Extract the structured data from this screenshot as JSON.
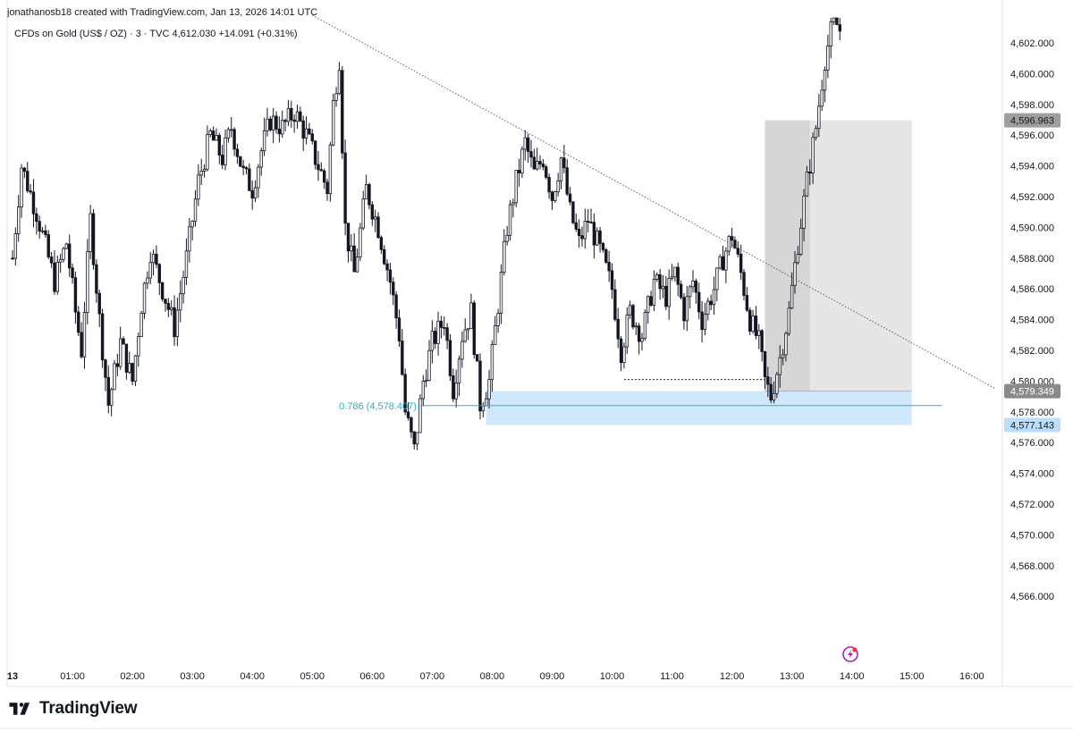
{
  "header": {
    "credit": "jonathanosb18 created with TradingView.com, Jan 13, 2026 14:01 UTC",
    "symbol": "CFDs on Gold (US$ / OZ) · 3 · TVC",
    "last_price": "4,612.030",
    "change": "+14.091 (+0.31%)"
  },
  "footer": {
    "logo_text": "TradingView"
  },
  "chart_data": {
    "type": "candlestick",
    "symbol": "CFDs on Gold (US$ / OZ)",
    "interval": "3",
    "source": "TVC",
    "y_axis_labels": [
      "4,602.000",
      "4,600.000",
      "4,598.000",
      "4,596.000",
      "4,594.000",
      "4,592.000",
      "4,590.000",
      "4,588.000",
      "4,586.000",
      "4,584.000",
      "4,582.000",
      "4,580.000",
      "4,578.000",
      "4,576.000",
      "4,574.000",
      "4,572.000",
      "4,570.000",
      "4,568.000",
      "4,566.000"
    ],
    "y_axis_values": [
      4602,
      4600,
      4598,
      4596,
      4594,
      4592,
      4590,
      4588,
      4586,
      4584,
      4582,
      4580,
      4578,
      4576,
      4574,
      4572,
      4570,
      4568,
      4566
    ],
    "x_axis_labels": [
      "13",
      "01:00",
      "02:00",
      "03:00",
      "04:00",
      "05:00",
      "06:00",
      "07:00",
      "08:00",
      "09:00",
      "10:00",
      "11:00",
      "12:00",
      "13:00",
      "14:00",
      "15:00",
      "16:00"
    ],
    "ylim": [
      4565.0,
      4604.0
    ],
    "xlim_hours": [
      0,
      16.0
    ],
    "price_path": [
      [
        0.0,
        4588.0
      ],
      [
        0.15,
        4594.0
      ],
      [
        0.4,
        4591.0
      ],
      [
        0.7,
        4586.5
      ],
      [
        0.9,
        4589.0
      ],
      [
        1.05,
        4584.5
      ],
      [
        1.15,
        4582.0
      ],
      [
        1.3,
        4590.5
      ],
      [
        1.45,
        4584.0
      ],
      [
        1.6,
        4578.5
      ],
      [
        1.8,
        4582.5
      ],
      [
        2.0,
        4580.0
      ],
      [
        2.15,
        4585.0
      ],
      [
        2.3,
        4588.5
      ],
      [
        2.5,
        4586.0
      ],
      [
        2.7,
        4583.5
      ],
      [
        2.9,
        4588.0
      ],
      [
        3.1,
        4593.0
      ],
      [
        3.3,
        4596.0
      ],
      [
        3.5,
        4594.5
      ],
      [
        3.65,
        4596.5
      ],
      [
        3.85,
        4593.5
      ],
      [
        4.0,
        4592.5
      ],
      [
        4.15,
        4595.0
      ],
      [
        4.3,
        4597.0
      ],
      [
        4.5,
        4596.5
      ],
      [
        4.7,
        4597.5
      ],
      [
        4.9,
        4596.0
      ],
      [
        5.1,
        4594.0
      ],
      [
        5.25,
        4592.5
      ],
      [
        5.35,
        4598.0
      ],
      [
        5.45,
        4601.0
      ],
      [
        5.55,
        4590.0
      ],
      [
        5.7,
        4587.0
      ],
      [
        5.9,
        4592.5
      ],
      [
        6.1,
        4590.0
      ],
      [
        6.3,
        4586.5
      ],
      [
        6.45,
        4583.0
      ],
      [
        6.55,
        4578.0
      ],
      [
        6.7,
        4575.5
      ],
      [
        6.85,
        4580.0
      ],
      [
        7.0,
        4582.5
      ],
      [
        7.2,
        4584.0
      ],
      [
        7.35,
        4579.5
      ],
      [
        7.5,
        4583.0
      ],
      [
        7.65,
        4584.5
      ],
      [
        7.8,
        4578.5
      ],
      [
        7.95,
        4580.0
      ],
      [
        8.1,
        4585.0
      ],
      [
        8.25,
        4590.0
      ],
      [
        8.4,
        4593.0
      ],
      [
        8.55,
        4595.5
      ],
      [
        8.7,
        4593.5
      ],
      [
        8.85,
        4594.5
      ],
      [
        9.0,
        4592.0
      ],
      [
        9.15,
        4594.5
      ],
      [
        9.3,
        4591.0
      ],
      [
        9.45,
        4589.0
      ],
      [
        9.6,
        4590.5
      ],
      [
        9.8,
        4588.5
      ],
      [
        10.0,
        4586.0
      ],
      [
        10.15,
        4582.0
      ],
      [
        10.3,
        4584.5
      ],
      [
        10.5,
        4583.0
      ],
      [
        10.7,
        4586.5
      ],
      [
        10.9,
        4585.5
      ],
      [
        11.05,
        4587.0
      ],
      [
        11.2,
        4584.5
      ],
      [
        11.35,
        4586.5
      ],
      [
        11.5,
        4584.0
      ],
      [
        11.7,
        4586.0
      ],
      [
        11.85,
        4588.0
      ],
      [
        12.0,
        4589.5
      ],
      [
        12.15,
        4587.0
      ],
      [
        12.3,
        4584.0
      ],
      [
        12.45,
        4582.5
      ],
      [
        12.55,
        4580.0
      ],
      [
        12.65,
        4579.0
      ],
      [
        12.8,
        4581.5
      ],
      [
        12.95,
        4584.5
      ],
      [
        13.1,
        4589.0
      ],
      [
        13.25,
        4593.0
      ],
      [
        13.4,
        4596.5
      ],
      [
        13.55,
        4601.0
      ],
      [
        13.7,
        4603.5
      ],
      [
        13.85,
        4602.5
      ]
    ],
    "trendline": {
      "start": [
        5.0,
        4603.8
      ],
      "end": [
        16.4,
        4579.5
      ],
      "style": "dotted"
    },
    "fib_level": {
      "label": "0.786 (4,578.407)",
      "value": 4578.407,
      "x_start_hours": 6.8,
      "x_end_hours": 15.5,
      "color": "#22b3cf"
    },
    "demand_zone": {
      "from_hours": 7.9,
      "to_hours": 15.0,
      "top": 4579.349,
      "bottom": 4577.143,
      "color": "#bbdefb"
    },
    "position_zone": {
      "from_hours": 12.55,
      "to_hours": 15.0,
      "top": 4596.963,
      "bottom": 4579.349,
      "dark_until_hours": 13.3
    },
    "low_marker_line": {
      "from_hours": 10.2,
      "to_hours": 12.55,
      "value": 4580.1
    },
    "price_badges": [
      {
        "label": "4,596.963",
        "value": 4596.963,
        "bg": "#9e9e9e",
        "fg": "#131722"
      },
      {
        "label": "4,579.349",
        "value": 4579.349,
        "bg": "#8a8a8a",
        "fg": "#ffffff"
      },
      {
        "label": "4,577.143",
        "value": 4577.143,
        "bg": "#bbdefb",
        "fg": "#131722"
      }
    ],
    "grid": false,
    "colors": {
      "candle": "#131722",
      "trendline": "#5d606b",
      "fib": "#22b3cf",
      "zone_blue": "#bbdefb",
      "zone_gray": "#e6e6e6",
      "zone_gray_dark": "#d6d6d6"
    }
  },
  "icons": {
    "alert": "lightning-alert-icon"
  }
}
